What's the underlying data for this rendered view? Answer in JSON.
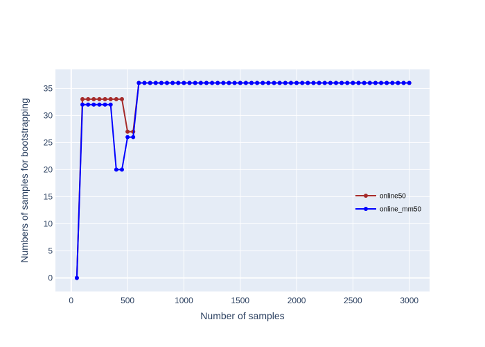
{
  "chart_data": {
    "type": "line",
    "xlabel": "Number of samples",
    "ylabel": "Numbers of samples for bootstrapping",
    "xlim": [
      -140,
      3180
    ],
    "ylim": [
      -2.5,
      38.5
    ],
    "xticks": [
      0,
      500,
      1000,
      1500,
      2000,
      2500,
      3000
    ],
    "yticks": [
      0,
      5,
      10,
      15,
      20,
      25,
      30,
      35
    ],
    "grid": true,
    "legend_position": "right",
    "series": [
      {
        "name": "online50",
        "color": "#a52a2a",
        "x": [
          50,
          100,
          150,
          200,
          250,
          300,
          350,
          400,
          450,
          500,
          550,
          600,
          650,
          700,
          750,
          800,
          850,
          900,
          950,
          1000,
          1050,
          1100,
          1150,
          1200,
          1250,
          1300,
          1350,
          1400,
          1450,
          1500,
          1550,
          1600,
          1650,
          1700,
          1750,
          1800,
          1850,
          1900,
          1950,
          2000,
          2050,
          2100,
          2150,
          2200,
          2250,
          2300,
          2350,
          2400,
          2450,
          2500,
          2550,
          2600,
          2650,
          2700,
          2750,
          2800,
          2850,
          2900,
          2950,
          3000
        ],
        "y": [
          0,
          33,
          33,
          33,
          33,
          33,
          33,
          33,
          33,
          27,
          27,
          36,
          36,
          36,
          36,
          36,
          36,
          36,
          36,
          36,
          36,
          36,
          36,
          36,
          36,
          36,
          36,
          36,
          36,
          36,
          36,
          36,
          36,
          36,
          36,
          36,
          36,
          36,
          36,
          36,
          36,
          36,
          36,
          36,
          36,
          36,
          36,
          36,
          36,
          36,
          36,
          36,
          36,
          36,
          36,
          36,
          36,
          36,
          36,
          36
        ]
      },
      {
        "name": "online_mm50",
        "color": "#0000ff",
        "x": [
          50,
          100,
          150,
          200,
          250,
          300,
          350,
          400,
          450,
          500,
          550,
          600,
          650,
          700,
          750,
          800,
          850,
          900,
          950,
          1000,
          1050,
          1100,
          1150,
          1200,
          1250,
          1300,
          1350,
          1400,
          1450,
          1500,
          1550,
          1600,
          1650,
          1700,
          1750,
          1800,
          1850,
          1900,
          1950,
          2000,
          2050,
          2100,
          2150,
          2200,
          2250,
          2300,
          2350,
          2400,
          2450,
          2500,
          2550,
          2600,
          2650,
          2700,
          2750,
          2800,
          2850,
          2900,
          2950,
          3000
        ],
        "y": [
          0,
          32,
          32,
          32,
          32,
          32,
          32,
          20,
          20,
          26,
          26,
          36,
          36,
          36,
          36,
          36,
          36,
          36,
          36,
          36,
          36,
          36,
          36,
          36,
          36,
          36,
          36,
          36,
          36,
          36,
          36,
          36,
          36,
          36,
          36,
          36,
          36,
          36,
          36,
          36,
          36,
          36,
          36,
          36,
          36,
          36,
          36,
          36,
          36,
          36,
          36,
          36,
          36,
          36,
          36,
          36,
          36,
          36,
          36,
          36
        ]
      }
    ]
  }
}
